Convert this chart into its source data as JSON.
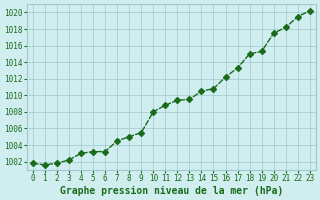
{
  "x": [
    0,
    1,
    2,
    3,
    4,
    5,
    6,
    7,
    8,
    9,
    10,
    11,
    12,
    13,
    14,
    15,
    16,
    17,
    18,
    19,
    20,
    21,
    22,
    23
  ],
  "y": [
    1001.8,
    1001.6,
    1001.8,
    1002.2,
    1003.0,
    1003.2,
    1003.2,
    1004.5,
    1005.0,
    1005.5,
    1008.0,
    1008.8,
    1009.4,
    1009.5,
    1010.5,
    1010.8,
    1012.2,
    1013.3,
    1015.0,
    1015.3,
    1017.5,
    1018.2,
    1019.5,
    1020.2
  ],
  "line_color": "#1a6b1a",
  "marker": "D",
  "marker_size": 3,
  "bg_color": "#d0eef0",
  "grid_color": "#a0c8cc",
  "xlabel": "Graphe pression niveau de la mer (hPa)",
  "xlabel_color": "#1a6b1a",
  "ytick_labels": [
    1002,
    1004,
    1006,
    1008,
    1010,
    1012,
    1014,
    1016,
    1018,
    1020
  ],
  "ylim": [
    1001.0,
    1021.0
  ],
  "xlim": [
    -0.5,
    23.5
  ],
  "xtick_labels": [
    "0",
    "1",
    "2",
    "3",
    "4",
    "5",
    "6",
    "7",
    "8",
    "9",
    "10",
    "11",
    "12",
    "13",
    "14",
    "15",
    "16",
    "17",
    "18",
    "19",
    "20",
    "21",
    "22",
    "23"
  ],
  "tick_color": "#1a6b1a",
  "tick_fontsize": 5.5,
  "xlabel_fontsize": 7,
  "line_width": 1.0
}
